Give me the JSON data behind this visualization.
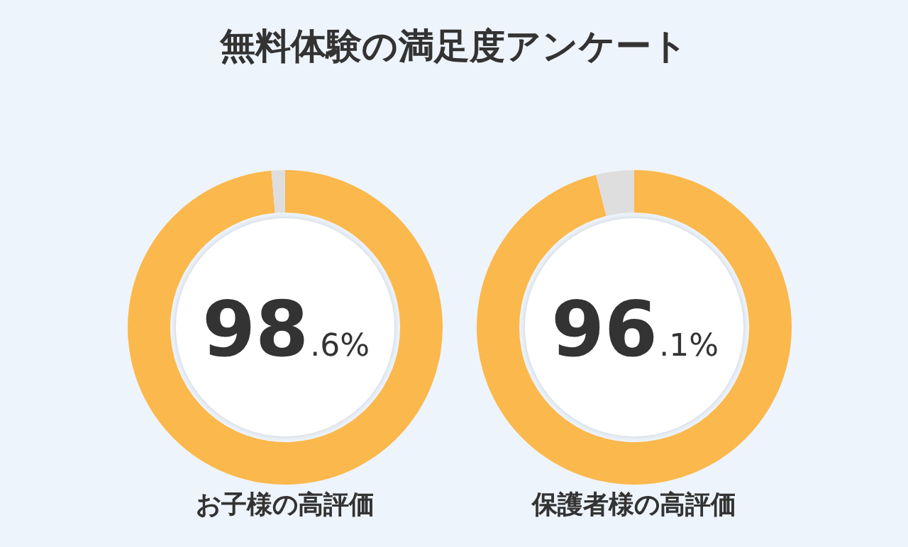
{
  "chart_data": [
    {
      "type": "other",
      "title": "無料体験の満足度アンケート"
    },
    {
      "type": "donut",
      "categories": [
        null,
        null
      ],
      "values": [
        98.6,
        1.4
      ],
      "colors": [
        "#fbb84c",
        "#dedede"
      ],
      "value_labels": [
        "98.6%",
        null
      ],
      "xlabel": "お子様の高評価",
      "legend": false
    },
    {
      "type": "donut",
      "categories": [
        null,
        null
      ],
      "values": [
        96.1,
        3.9
      ],
      "colors": [
        "#fbb84c",
        "#dedede"
      ],
      "value_labels": [
        "96.1%",
        null
      ],
      "xlabel": "保護者様の高評価",
      "legend": false
    }
  ]
}
